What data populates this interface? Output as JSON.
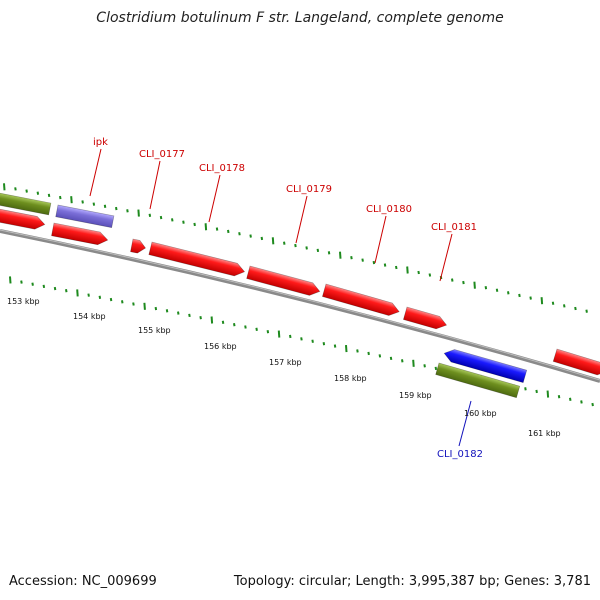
{
  "title": "Clostridium botulinum F str. Langeland, complete genome",
  "footer": {
    "accession": "Accession: NC_009699",
    "summary": "Topology: circular; Length: 3,995,387 bp; Genes: 3,781"
  },
  "colors": {
    "forward_cds": "#ee1111",
    "reverse_cds": "#1a1aee",
    "rna_gene": "#7b6fd8",
    "gene_feature": "#6e8f1f",
    "backbone": "#808080",
    "ticks": "#1e8a1e",
    "forward_label": "#cc0000",
    "reverse_label": "#1111bb"
  },
  "scale": {
    "tick_labels": [
      "153 kbp",
      "154 kbp",
      "155 kbp",
      "156 kbp",
      "157 kbp",
      "158 kbp",
      "159 kbp",
      "160 kbp",
      "161 kbp"
    ]
  },
  "gene_labels": [
    {
      "name": "ipk",
      "strand": "forward"
    },
    {
      "name": "CLI_0177",
      "strand": "forward"
    },
    {
      "name": "CLI_0178",
      "strand": "forward"
    },
    {
      "name": "CLI_0179",
      "strand": "forward"
    },
    {
      "name": "CLI_0180",
      "strand": "forward"
    },
    {
      "name": "CLI_0181",
      "strand": "forward"
    },
    {
      "name": "CLI_0182",
      "strand": "reverse"
    }
  ]
}
